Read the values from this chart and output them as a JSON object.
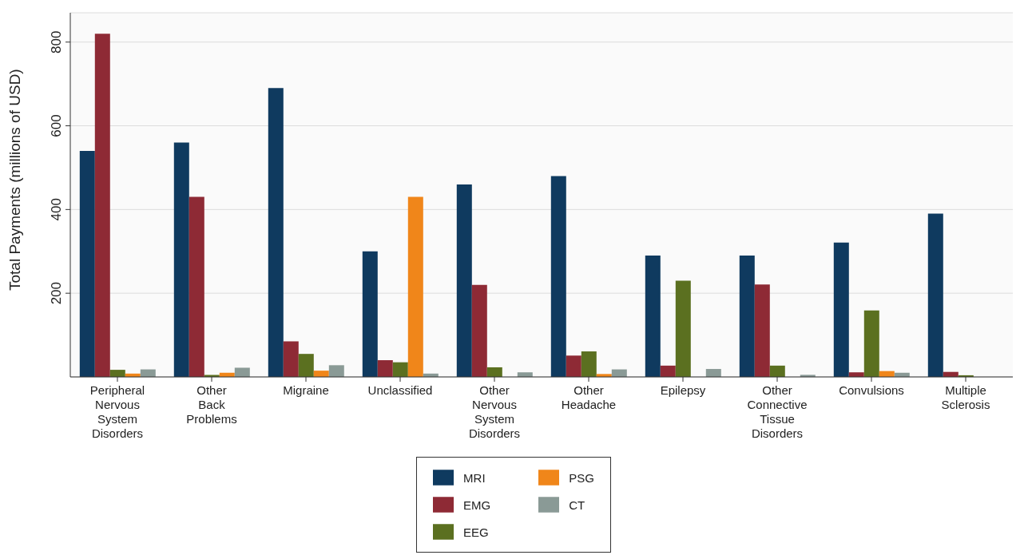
{
  "chart_data": {
    "type": "bar",
    "ylabel": "Total Payments (millions of USD)",
    "categories": [
      "Peripheral Nervous System Disorders",
      "Other Back Problems",
      "Migraine",
      "Unclassified",
      "Other Nervous System Disorders",
      "Other Headache",
      "Epilepsy",
      "Other Connective Tissue Disorders",
      "Convulsions",
      "Multiple Sclerosis"
    ],
    "series": [
      {
        "name": "MRI",
        "color": "#0f3a5f",
        "values": [
          540,
          560,
          690,
          300,
          460,
          480,
          290,
          290,
          321,
          390
        ]
      },
      {
        "name": "EMG",
        "color": "#8e2a35",
        "values": [
          820,
          430,
          85,
          40,
          220,
          51,
          27,
          221,
          11,
          12
        ]
      },
      {
        "name": "EEG",
        "color": "#5b7020",
        "values": [
          17,
          5,
          55,
          35,
          23,
          61,
          230,
          27,
          159,
          4
        ]
      },
      {
        "name": "PSG",
        "color": "#f0861a",
        "values": [
          8,
          10,
          15,
          430,
          0,
          7,
          0,
          0,
          14,
          0
        ]
      },
      {
        "name": "CT",
        "color": "#8a9a96",
        "values": [
          18,
          22,
          28,
          8,
          11,
          18,
          19,
          5,
          10,
          0
        ]
      }
    ],
    "ylim": [
      0,
      870
    ],
    "yticks": [
      200,
      400,
      600,
      800
    ],
    "grid": "y",
    "legend": "bottom"
  }
}
